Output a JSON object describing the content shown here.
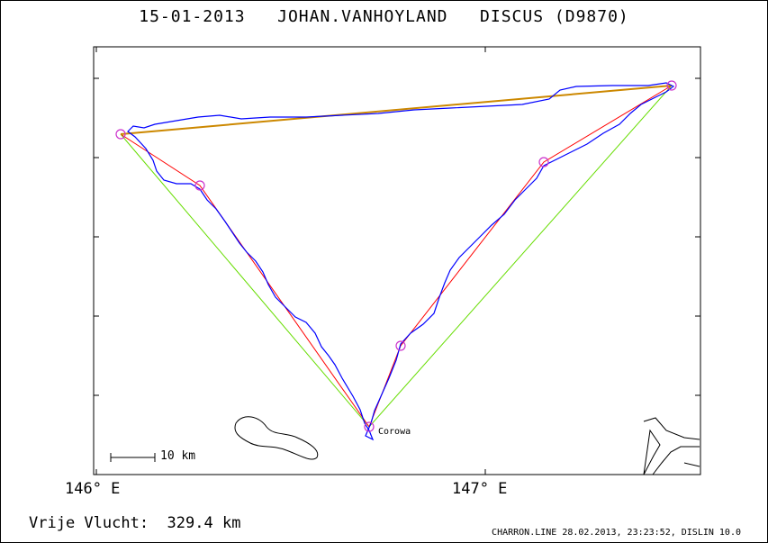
{
  "header": {
    "date": "15-01-2013",
    "pilot": "JOHAN.VANHOYLAND",
    "glider": "DISCUS (D9870)"
  },
  "map": {
    "x_axis_labels": [
      "146° E",
      "147° E"
    ],
    "scale_label": "10 km",
    "town_label": "Corowa",
    "colors": {
      "track": "#0000ff",
      "task_leg": "#ff0000",
      "closing_leg": "#66dd00",
      "main_leg": "#cc8800",
      "turnpoint": "#cc33cc",
      "water": "#000000"
    }
  },
  "result": {
    "label": "Vrije Vlucht:",
    "distance": "329.4 km"
  },
  "footer": {
    "credit": "CHARRON.LINE 28.02.2013, 23:23:52, DISLIN 10.0"
  }
}
